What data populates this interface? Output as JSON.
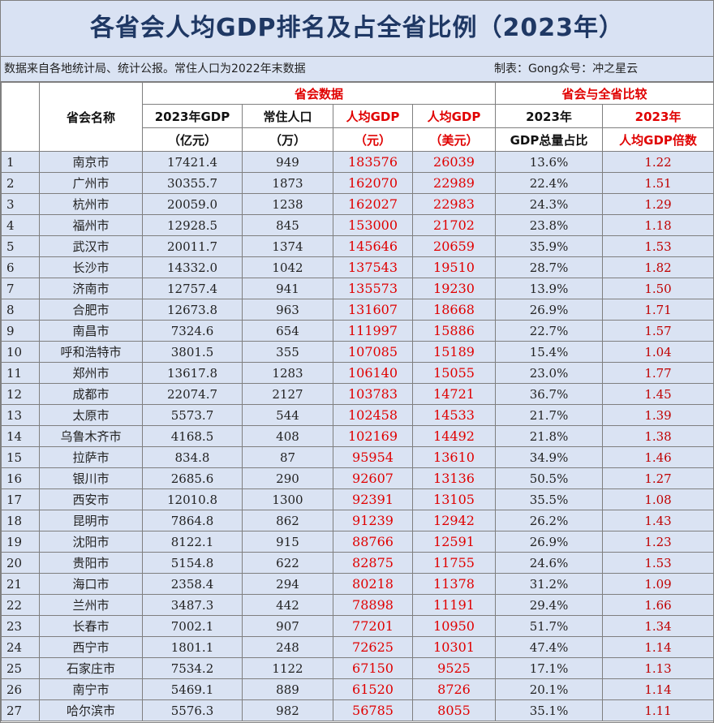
{
  "title": "各省会人均GDP排名及占全省比例（2023年）",
  "source_note": "数据来自各地统计局、统计公报。常住人口为2022年末数据",
  "credit": "制表：Gong众号：冲之星云",
  "headers": {
    "name": "省会名称",
    "group_city": "省会数据",
    "group_compare": "省会与全省比较",
    "gdp_line1": "2023年GDP",
    "gdp_line2": "（亿元）",
    "pop_line1": "常住人口",
    "pop_line2": "（万）",
    "pcgdp_yuan_line1": "人均GDP",
    "pcgdp_yuan_line2": "（元）",
    "pcgdp_usd_line1": "人均GDP",
    "pcgdp_usd_line2": "（美元）",
    "share_line1": "2023年",
    "share_line2": "GDP总量占比",
    "multiple_line1": "2023年",
    "multiple_line2": "人均GDP倍数"
  },
  "rows": [
    {
      "rank": "1",
      "name": "南京市",
      "gdp": "17421.4",
      "pop": "949",
      "pc_yuan": "183576",
      "pc_usd": "26039",
      "share": "13.6%",
      "multiple": "1.22"
    },
    {
      "rank": "2",
      "name": "广州市",
      "gdp": "30355.7",
      "pop": "1873",
      "pc_yuan": "162070",
      "pc_usd": "22989",
      "share": "22.4%",
      "multiple": "1.51"
    },
    {
      "rank": "3",
      "name": "杭州市",
      "gdp": "20059.0",
      "pop": "1238",
      "pc_yuan": "162027",
      "pc_usd": "22983",
      "share": "24.3%",
      "multiple": "1.29"
    },
    {
      "rank": "4",
      "name": "福州市",
      "gdp": "12928.5",
      "pop": "845",
      "pc_yuan": "153000",
      "pc_usd": "21702",
      "share": "23.8%",
      "multiple": "1.18"
    },
    {
      "rank": "5",
      "name": "武汉市",
      "gdp": "20011.7",
      "pop": "1374",
      "pc_yuan": "145646",
      "pc_usd": "20659",
      "share": "35.9%",
      "multiple": "1.53"
    },
    {
      "rank": "6",
      "name": "长沙市",
      "gdp": "14332.0",
      "pop": "1042",
      "pc_yuan": "137543",
      "pc_usd": "19510",
      "share": "28.7%",
      "multiple": "1.82"
    },
    {
      "rank": "7",
      "name": "济南市",
      "gdp": "12757.4",
      "pop": "941",
      "pc_yuan": "135573",
      "pc_usd": "19230",
      "share": "13.9%",
      "multiple": "1.50"
    },
    {
      "rank": "8",
      "name": "合肥市",
      "gdp": "12673.8",
      "pop": "963",
      "pc_yuan": "131607",
      "pc_usd": "18668",
      "share": "26.9%",
      "multiple": "1.71"
    },
    {
      "rank": "9",
      "name": "南昌市",
      "gdp": "7324.6",
      "pop": "654",
      "pc_yuan": "111997",
      "pc_usd": "15886",
      "share": "22.7%",
      "multiple": "1.57"
    },
    {
      "rank": "10",
      "name": "呼和浩特市",
      "gdp": "3801.5",
      "pop": "355",
      "pc_yuan": "107085",
      "pc_usd": "15189",
      "share": "15.4%",
      "multiple": "1.04"
    },
    {
      "rank": "11",
      "name": "郑州市",
      "gdp": "13617.8",
      "pop": "1283",
      "pc_yuan": "106140",
      "pc_usd": "15055",
      "share": "23.0%",
      "multiple": "1.77"
    },
    {
      "rank": "12",
      "name": "成都市",
      "gdp": "22074.7",
      "pop": "2127",
      "pc_yuan": "103783",
      "pc_usd": "14721",
      "share": "36.7%",
      "multiple": "1.45"
    },
    {
      "rank": "13",
      "name": "太原市",
      "gdp": "5573.7",
      "pop": "544",
      "pc_yuan": "102458",
      "pc_usd": "14533",
      "share": "21.7%",
      "multiple": "1.39"
    },
    {
      "rank": "14",
      "name": "乌鲁木齐市",
      "gdp": "4168.5",
      "pop": "408",
      "pc_yuan": "102169",
      "pc_usd": "14492",
      "share": "21.8%",
      "multiple": "1.38"
    },
    {
      "rank": "15",
      "name": "拉萨市",
      "gdp": "834.8",
      "pop": "87",
      "pc_yuan": "95954",
      "pc_usd": "13610",
      "share": "34.9%",
      "multiple": "1.46"
    },
    {
      "rank": "16",
      "name": "银川市",
      "gdp": "2685.6",
      "pop": "290",
      "pc_yuan": "92607",
      "pc_usd": "13136",
      "share": "50.5%",
      "multiple": "1.27"
    },
    {
      "rank": "17",
      "name": "西安市",
      "gdp": "12010.8",
      "pop": "1300",
      "pc_yuan": "92391",
      "pc_usd": "13105",
      "share": "35.5%",
      "multiple": "1.08"
    },
    {
      "rank": "18",
      "name": "昆明市",
      "gdp": "7864.8",
      "pop": "862",
      "pc_yuan": "91239",
      "pc_usd": "12942",
      "share": "26.2%",
      "multiple": "1.43"
    },
    {
      "rank": "19",
      "name": "沈阳市",
      "gdp": "8122.1",
      "pop": "915",
      "pc_yuan": "88766",
      "pc_usd": "12591",
      "share": "26.9%",
      "multiple": "1.23"
    },
    {
      "rank": "20",
      "name": "贵阳市",
      "gdp": "5154.8",
      "pop": "622",
      "pc_yuan": "82875",
      "pc_usd": "11755",
      "share": "24.6%",
      "multiple": "1.53"
    },
    {
      "rank": "21",
      "name": "海口市",
      "gdp": "2358.4",
      "pop": "294",
      "pc_yuan": "80218",
      "pc_usd": "11378",
      "share": "31.2%",
      "multiple": "1.09"
    },
    {
      "rank": "22",
      "name": "兰州市",
      "gdp": "3487.3",
      "pop": "442",
      "pc_yuan": "78898",
      "pc_usd": "11191",
      "share": "29.4%",
      "multiple": "1.66"
    },
    {
      "rank": "23",
      "name": "长春市",
      "gdp": "7002.1",
      "pop": "907",
      "pc_yuan": "77201",
      "pc_usd": "10950",
      "share": "51.7%",
      "multiple": "1.34"
    },
    {
      "rank": "24",
      "name": "西宁市",
      "gdp": "1801.1",
      "pop": "248",
      "pc_yuan": "72625",
      "pc_usd": "10301",
      "share": "47.4%",
      "multiple": "1.14"
    },
    {
      "rank": "25",
      "name": "石家庄市",
      "gdp": "7534.2",
      "pop": "1122",
      "pc_yuan": "67150",
      "pc_usd": "9525",
      "share": "17.1%",
      "multiple": "1.13"
    },
    {
      "rank": "26",
      "name": "南宁市",
      "gdp": "5469.1",
      "pop": "889",
      "pc_yuan": "61520",
      "pc_usd": "8726",
      "share": "20.1%",
      "multiple": "1.14"
    },
    {
      "rank": "27",
      "name": "哈尔滨市",
      "gdp": "5576.3",
      "pop": "982",
      "pc_yuan": "56785",
      "pc_usd": "8055",
      "share": "35.1%",
      "multiple": "1.11"
    }
  ]
}
